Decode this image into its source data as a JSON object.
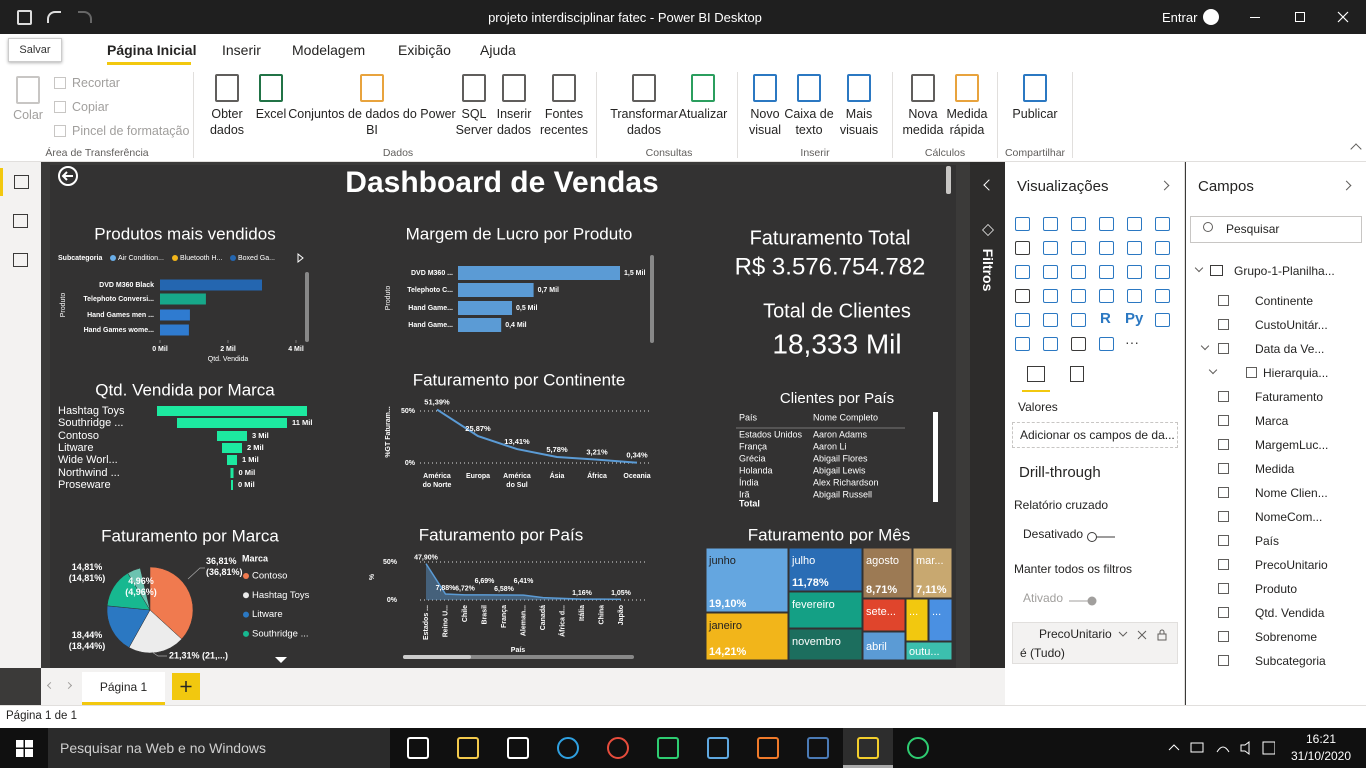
{
  "window": {
    "title": "projeto interdisciplinar fatec - Power BI Desktop",
    "account": "Entrar",
    "tooltip": "Salvar"
  },
  "ribbon": {
    "tabs": [
      "Página Inicial",
      "Inserir",
      "Modelagem",
      "Exibição",
      "Ajuda"
    ],
    "active_tab": 0,
    "groups": [
      {
        "label": "Área de Transferência",
        "items": [
          "Colar",
          "Recortar",
          "Copiar",
          "Pincel de formatação"
        ]
      },
      {
        "label": "Dados",
        "items": [
          "Obter dados",
          "Excel",
          "Conjuntos de dados do Power BI",
          "SQL Server",
          "Inserir dados",
          "Fontes recentes"
        ]
      },
      {
        "label": "Consultas",
        "items": [
          "Transformar dados",
          "Atualizar"
        ]
      },
      {
        "label": "Inserir",
        "items": [
          "Novo visual",
          "Caixa de texto",
          "Mais visuais"
        ]
      },
      {
        "label": "Cálculos",
        "items": [
          "Nova medida",
          "Medida rápida"
        ]
      },
      {
        "label": "Compartilhar",
        "items": [
          "Publicar"
        ]
      }
    ]
  },
  "report": {
    "title": "Dashboard de Vendas",
    "kpis": [
      {
        "label": "Faturamento Total",
        "value": "R$ 3.576.754.782"
      },
      {
        "label": "Total de Clientes",
        "value": "18,333 Mil"
      }
    ],
    "charts": [
      {
        "type": "hbar",
        "title": "Produtos mais vendidos",
        "legend_title": "Subcategoria",
        "legend": [
          {
            "name": "Air Condition...",
            "color": "#6aaee8"
          },
          {
            "name": "Bluetooth H...",
            "color": "#f2b51a"
          },
          {
            "name": "Boxed Ga...",
            "color": "#2466b0"
          }
        ],
        "categories": [
          "DVD M360 Black",
          "Telephoto Conversi...",
          "Hand Games men ...",
          "Hand Games wome..."
        ],
        "values": [
          3.0,
          1.35,
          0.88,
          0.85
        ],
        "colors": [
          "#2466b0",
          "#17a88a",
          "#2f7bd0",
          "#2f7bd0"
        ],
        "xlim": [
          0,
          4
        ],
        "xticks": [
          {
            "value": 0,
            "label": "0 Mil"
          },
          {
            "value": 2,
            "label": "2 Mil"
          },
          {
            "value": 4,
            "label": "4 Mil"
          }
        ],
        "xlabel": "Qtd. Vendida",
        "ylabel": "Produto"
      },
      {
        "type": "labeled-bar",
        "title": "Margem de Lucro por Produto",
        "categories": [
          "DVD M360 ...",
          "Telephoto C...",
          "Hand Game...",
          "Hand Game..."
        ],
        "values": [
          1.5,
          0.7,
          0.5,
          0.4
        ],
        "value_labels": [
          "1,5 Mil",
          "0,7 Mil",
          "0,5 Mil",
          "0,4 Mil"
        ],
        "color": "#5b9bd5",
        "ylabel": "Produto"
      },
      {
        "type": "funnel",
        "title": "Qtd. Vendida por Marca",
        "categories": [
          "Hashtag Toys",
          "Southridge ...",
          "Contoso",
          "Litware",
          "Wide Worl...",
          "Northwind ...",
          "Proseware"
        ],
        "values": [
          15,
          11,
          3,
          2,
          1,
          0.3,
          0.2
        ],
        "value_labels": [
          null,
          "11 Mil",
          "3 Mil",
          "2 Mil",
          "1 Mil",
          "0 Mil",
          "0 Mil"
        ],
        "color": "#1de9a0"
      },
      {
        "type": "line",
        "title": "Faturamento por Continente",
        "categories": [
          "América do Norte",
          "Europa",
          "América do Sul",
          "Ásia",
          "África",
          "Oceania"
        ],
        "values": [
          51.39,
          25.87,
          13.41,
          5.78,
          3.21,
          0.34
        ],
        "value_labels": [
          "51,39%",
          "25,87%",
          "13,41%",
          "5,78%",
          "3,21%",
          "0,34%"
        ],
        "ylim": [
          0,
          55
        ],
        "yticks": [
          {
            "value": 0,
            "label": "0%"
          },
          {
            "value": 50,
            "label": "50%"
          }
        ],
        "ylabel": "%GT Faturam...",
        "color": "#5b9bd5"
      },
      {
        "type": "table",
        "title": "Clientes por País",
        "columns": [
          "País",
          "Nome Completo"
        ],
        "rows": [
          [
            "Estados Unidos",
            "Aaron Adams"
          ],
          [
            "França",
            "Aaron Li"
          ],
          [
            "Grécia",
            "Abigail Flores"
          ],
          [
            "Holanda",
            "Abigail Lewis"
          ],
          [
            "Índia",
            "Alex Richardson"
          ],
          [
            "Irã",
            "Abigail Russell"
          ]
        ],
        "total": "Total"
      },
      {
        "type": "pie",
        "title": "Faturamento por Marca",
        "legend_title": "Marca",
        "categories": [
          "Contoso",
          "Hashtag Toys",
          "Litware",
          "Southridge ...",
          null
        ],
        "values": [
          36.81,
          21.31,
          18.44,
          14.81,
          4.96
        ],
        "value_labels": [
          "36,81% (36,81%)",
          "21,31% (21,...)",
          "18,44% (18,44%)",
          "14,81% (14,81%)",
          "4,96% (4,96%)"
        ],
        "colors": [
          "#f07a4f",
          "#ececec",
          "#2b78c2",
          "#17b890",
          "#6cc3b0"
        ]
      },
      {
        "type": "area",
        "title": "Faturamento por País",
        "categories": [
          "Estados ...",
          "Reino U...",
          "Chile",
          "Brasil",
          "França",
          "Aleman...",
          "Canadá",
          "África d...",
          "Itália",
          "China",
          "Japão"
        ],
        "values": [
          47.9,
          7.88,
          6.72,
          6.69,
          6.58,
          6.41,
          3.2,
          2.1,
          1.16,
          1.1,
          1.05
        ],
        "value_labels": [
          "47,90%",
          "7,88%",
          "6,72%",
          "6,69%",
          "6,58%",
          "6,41%",
          null,
          null,
          "1,16%",
          null,
          "1,05%"
        ],
        "ylim": [
          0,
          55
        ],
        "yticks": [
          {
            "value": 0,
            "label": "0%"
          },
          {
            "value": 50,
            "label": "50%"
          }
        ],
        "xlabel": "País",
        "ylabel": "%",
        "color": "#5b9bd5"
      },
      {
        "type": "treemap",
        "title": "Faturamento por Mês",
        "cells": [
          {
            "name": "junho",
            "value": 19.1,
            "value_label": "19,10%",
            "color": "#64a6e0"
          },
          {
            "name": "janeiro",
            "value": 14.21,
            "value_label": "14,21%",
            "color": "#f2b51a"
          },
          {
            "name": "julho",
            "value": 11.78,
            "value_label": "11,78%",
            "color": "#2a6db5"
          },
          {
            "name": "fevereiro",
            "value": null,
            "value_label": null,
            "color": "#14a085"
          },
          {
            "name": "novembro",
            "value": null,
            "value_label": null,
            "color": "#1c6e5e"
          },
          {
            "name": "agosto",
            "value": 8.71,
            "value_label": "8,71%",
            "color": "#9c7a54"
          },
          {
            "name": "mar...",
            "value": 7.11,
            "value_label": "7,11%",
            "color": "#c8a870"
          },
          {
            "name": "sete...",
            "value": null,
            "value_label": null,
            "color": "#e0452c"
          },
          {
            "name": "...",
            "value": null,
            "value_label": null,
            "color": "#f2c80f"
          },
          {
            "name": "...",
            "value": null,
            "value_label": null,
            "color": "#4a90e2"
          },
          {
            "name": "abril",
            "value": null,
            "value_label": null,
            "color": "#5b9bd5"
          },
          {
            "name": "outu...",
            "value": null,
            "value_label": null,
            "color": "#3cbfae"
          }
        ]
      }
    ]
  },
  "filters_pane": "Filtros",
  "visualizations": {
    "title": "Visualizações",
    "icon_labels": [
      "R",
      "Py",
      "···"
    ],
    "values_label": "Valores",
    "values_placeholder": "Adicionar os campos de da...",
    "drillthrough": "Drill-through",
    "cross_report": "Relatório cruzado",
    "cross_report_state": "Desativado",
    "keep_filters": "Manter todos os filtros",
    "keep_filters_state": "Ativado",
    "filter_card": {
      "field": "PrecoUnitario",
      "condition": "é (Tudo)"
    }
  },
  "fields": {
    "title": "Campos",
    "search": "Pesquisar",
    "table": "Grupo-1-Planilha...",
    "items": [
      "Continente",
      "CustoUnitár...",
      "Data da Ve...",
      "Hierarquia...",
      "Faturamento",
      "Marca",
      "MargemLuc...",
      "Medida",
      "Nome Clien...",
      "NomeCom...",
      "País",
      "PrecoUnitario",
      "Produto",
      "Qtd. Vendida",
      "Sobrenome",
      "Subcategoria"
    ]
  },
  "pages": {
    "tab": "Página 1",
    "status": "Página 1 de 1"
  },
  "taskbar": {
    "search": "Pesquisar na Web e no Windows",
    "time": "16:21",
    "date": "31/10/2020"
  }
}
